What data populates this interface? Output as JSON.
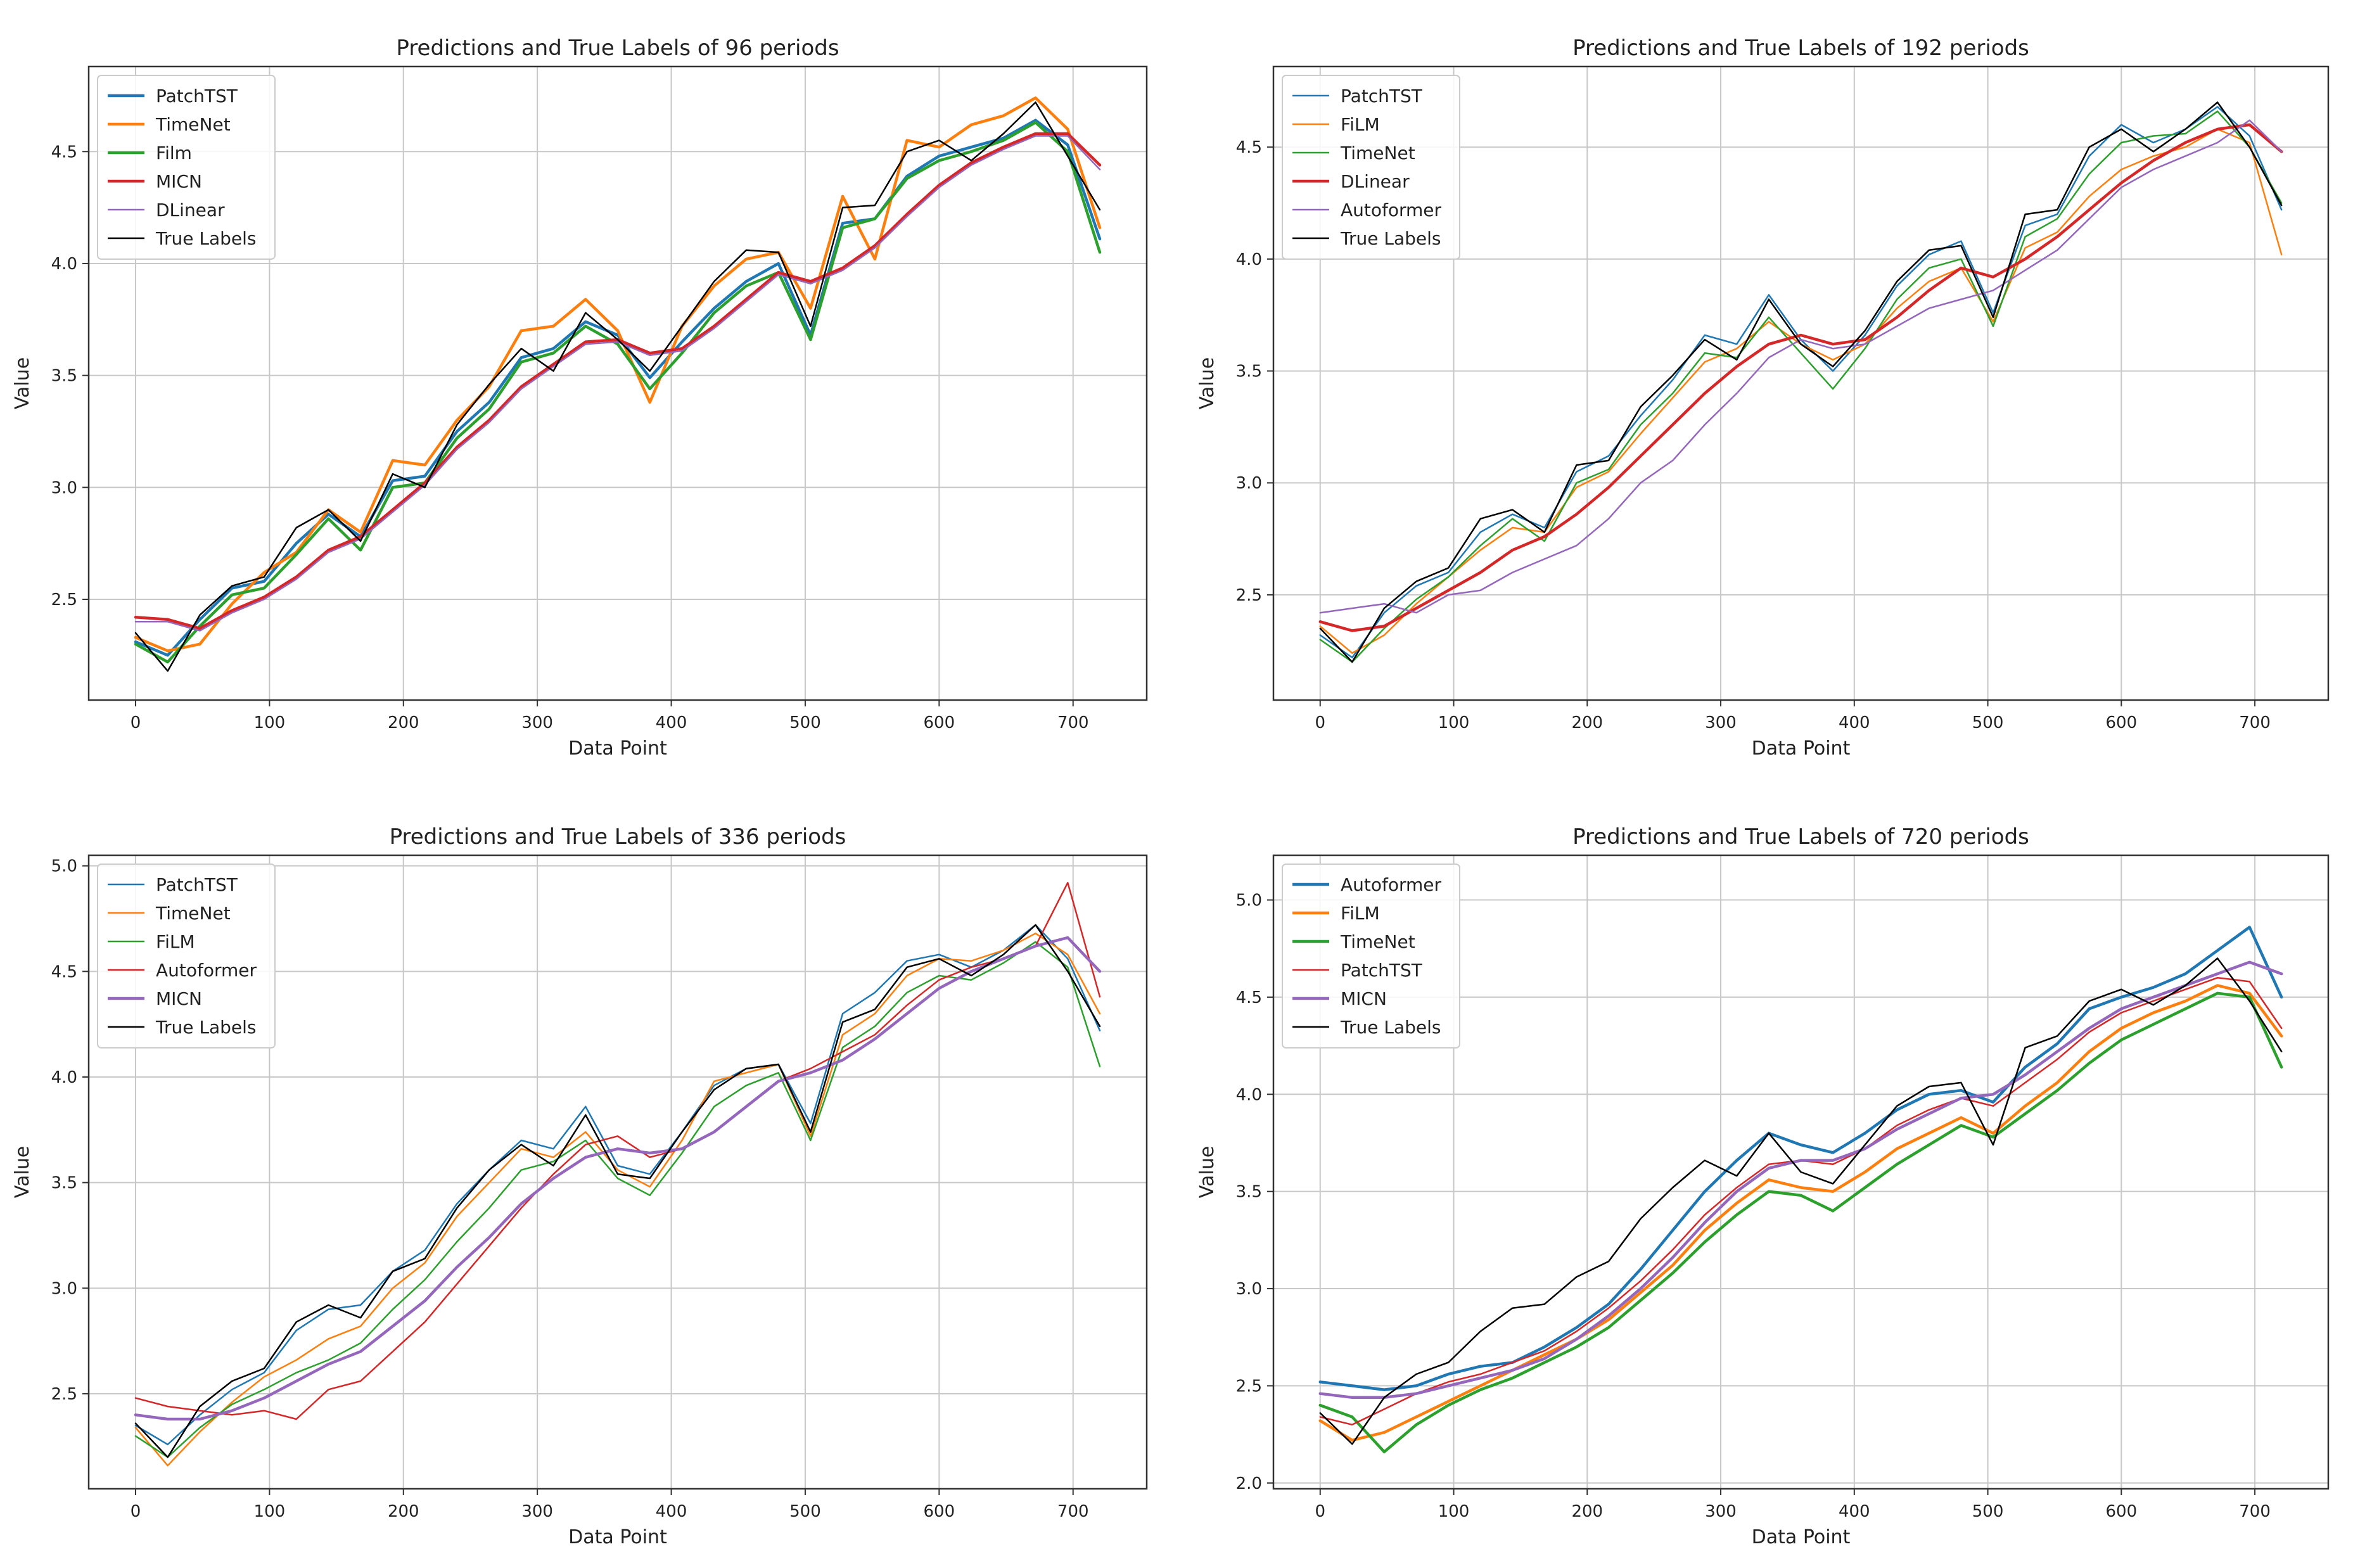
{
  "figure_title": "",
  "colors": {
    "blue": "#1f77b4",
    "orange": "#ff7f0e",
    "green": "#2ca02c",
    "red": "#d62728",
    "purple": "#9467bd",
    "black": "#000000",
    "grid": "#c8c8c8",
    "frame": "#333333"
  },
  "chart_data": [
    {
      "type": "line",
      "title": "Predictions and True Labels of 96 periods",
      "xlabel": "Data Point",
      "ylabel": "Value",
      "xlim": [
        -35,
        755
      ],
      "ylim": [
        2.05,
        4.88
      ],
      "xticks": [
        0,
        100,
        200,
        300,
        400,
        500,
        600,
        700
      ],
      "yticks": [
        2.5,
        3.0,
        3.5,
        4.0,
        4.5
      ],
      "ytick_labels": [
        "2.5",
        "3.0",
        "3.5",
        "4.0",
        "4.5"
      ],
      "legend_position": "upper-left",
      "series": [
        {
          "name": "PatchTST",
          "color": "#1f77b4",
          "width": 4.5,
          "values": [
            2.31,
            2.25,
            2.41,
            2.55,
            2.58,
            2.75,
            2.88,
            2.78,
            3.03,
            3.05,
            3.25,
            3.38,
            3.58,
            3.62,
            3.74,
            3.68,
            3.49,
            3.65,
            3.8,
            3.92,
            4.0,
            3.68,
            4.18,
            4.2,
            4.39,
            4.48,
            4.52,
            4.56,
            4.64,
            4.53,
            4.11
          ]
        },
        {
          "name": "TimeNet",
          "color": "#ff7f0e",
          "width": 4.5,
          "values": [
            2.33,
            2.27,
            2.3,
            2.48,
            2.62,
            2.71,
            2.9,
            2.8,
            3.12,
            3.1,
            3.3,
            3.45,
            3.7,
            3.72,
            3.84,
            3.7,
            3.38,
            3.72,
            3.9,
            4.02,
            4.05,
            3.8,
            4.3,
            4.02,
            4.55,
            4.52,
            4.62,
            4.66,
            4.74,
            4.6,
            4.16
          ]
        },
        {
          "name": "Film",
          "color": "#2ca02c",
          "width": 4.5,
          "values": [
            2.3,
            2.22,
            2.38,
            2.52,
            2.55,
            2.7,
            2.86,
            2.72,
            3.0,
            3.02,
            3.22,
            3.35,
            3.56,
            3.6,
            3.72,
            3.64,
            3.44,
            3.6,
            3.78,
            3.9,
            3.96,
            3.66,
            4.16,
            4.2,
            4.38,
            4.46,
            4.5,
            4.55,
            4.63,
            4.5,
            4.05
          ]
        },
        {
          "name": "MICN",
          "color": "#d62728",
          "width": 4.5,
          "values": [
            2.42,
            2.41,
            2.37,
            2.45,
            2.51,
            2.6,
            2.72,
            2.78,
            2.9,
            3.02,
            3.18,
            3.3,
            3.45,
            3.55,
            3.65,
            3.66,
            3.6,
            3.62,
            3.72,
            3.84,
            3.96,
            3.92,
            3.98,
            4.08,
            4.22,
            4.35,
            4.45,
            4.52,
            4.58,
            4.58,
            4.44
          ]
        },
        {
          "name": "DLinear",
          "color": "#9467bd",
          "width": 2.5,
          "values": [
            2.4,
            2.4,
            2.36,
            2.44,
            2.5,
            2.59,
            2.71,
            2.77,
            2.89,
            3.01,
            3.17,
            3.29,
            3.44,
            3.54,
            3.64,
            3.65,
            3.59,
            3.61,
            3.71,
            3.83,
            3.95,
            3.91,
            3.97,
            4.07,
            4.21,
            4.34,
            4.44,
            4.51,
            4.57,
            4.57,
            4.42
          ]
        },
        {
          "name": "True Labels",
          "color": "#000000",
          "width": 2.5,
          "values": [
            2.35,
            2.18,
            2.43,
            2.56,
            2.6,
            2.82,
            2.9,
            2.76,
            3.06,
            3.0,
            3.28,
            3.46,
            3.62,
            3.52,
            3.78,
            3.66,
            3.52,
            3.72,
            3.92,
            4.06,
            4.05,
            3.72,
            4.25,
            4.26,
            4.5,
            4.55,
            4.46,
            4.58,
            4.72,
            4.48,
            4.24
          ]
        }
      ]
    },
    {
      "type": "line",
      "title": "Predictions and True Labels of 192 periods",
      "xlabel": "Data Point",
      "ylabel": "Value",
      "xlim": [
        -35,
        755
      ],
      "ylim": [
        2.03,
        4.86
      ],
      "xticks": [
        0,
        100,
        200,
        300,
        400,
        500,
        600,
        700
      ],
      "yticks": [
        2.5,
        3.0,
        3.5,
        4.0,
        4.5
      ],
      "ytick_labels": [
        "2.5",
        "3.0",
        "3.5",
        "4.0",
        "4.5"
      ],
      "legend_position": "upper-left",
      "series": [
        {
          "name": "PatchTST",
          "color": "#1f77b4",
          "width": 2.5,
          "values": [
            2.32,
            2.22,
            2.42,
            2.54,
            2.6,
            2.78,
            2.86,
            2.8,
            3.05,
            3.12,
            3.3,
            3.46,
            3.66,
            3.62,
            3.84,
            3.64,
            3.5,
            3.66,
            3.88,
            4.02,
            4.08,
            3.76,
            4.15,
            4.2,
            4.46,
            4.6,
            4.52,
            4.58,
            4.68,
            4.55,
            4.22
          ]
        },
        {
          "name": "FiLM",
          "color": "#ff7f0e",
          "width": 2.5,
          "values": [
            2.36,
            2.24,
            2.32,
            2.46,
            2.58,
            2.7,
            2.8,
            2.78,
            2.98,
            3.05,
            3.22,
            3.38,
            3.54,
            3.6,
            3.72,
            3.62,
            3.55,
            3.62,
            3.78,
            3.9,
            3.96,
            3.72,
            4.05,
            4.12,
            4.28,
            4.4,
            4.46,
            4.5,
            4.58,
            4.52,
            4.02
          ]
        },
        {
          "name": "TimeNet",
          "color": "#2ca02c",
          "width": 2.5,
          "values": [
            2.3,
            2.2,
            2.35,
            2.48,
            2.58,
            2.72,
            2.84,
            2.74,
            3.0,
            3.06,
            3.26,
            3.4,
            3.58,
            3.56,
            3.74,
            3.58,
            3.42,
            3.6,
            3.82,
            3.96,
            4.0,
            3.7,
            4.1,
            4.18,
            4.38,
            4.52,
            4.55,
            4.56,
            4.66,
            4.5,
            4.25
          ]
        },
        {
          "name": "DLinear",
          "color": "#d62728",
          "width": 4.5,
          "values": [
            2.38,
            2.34,
            2.36,
            2.44,
            2.52,
            2.6,
            2.7,
            2.76,
            2.86,
            2.98,
            3.12,
            3.26,
            3.4,
            3.52,
            3.62,
            3.66,
            3.62,
            3.64,
            3.74,
            3.86,
            3.96,
            3.92,
            4.0,
            4.1,
            4.22,
            4.34,
            4.44,
            4.52,
            4.58,
            4.6,
            4.48
          ]
        },
        {
          "name": "Autoformer",
          "color": "#9467bd",
          "width": 2.5,
          "values": [
            2.42,
            2.44,
            2.46,
            2.42,
            2.5,
            2.52,
            2.6,
            2.66,
            2.72,
            2.84,
            3.0,
            3.1,
            3.26,
            3.4,
            3.56,
            3.64,
            3.6,
            3.62,
            3.7,
            3.78,
            3.82,
            3.86,
            3.95,
            4.04,
            4.18,
            4.32,
            4.4,
            4.46,
            4.52,
            4.62,
            4.48
          ]
        },
        {
          "name": "True Labels",
          "color": "#000000",
          "width": 2.5,
          "values": [
            2.35,
            2.2,
            2.44,
            2.56,
            2.62,
            2.84,
            2.88,
            2.78,
            3.08,
            3.1,
            3.34,
            3.48,
            3.64,
            3.55,
            3.82,
            3.62,
            3.52,
            3.68,
            3.9,
            4.04,
            4.06,
            3.74,
            4.2,
            4.22,
            4.5,
            4.58,
            4.48,
            4.58,
            4.7,
            4.5,
            4.24
          ]
        }
      ]
    },
    {
      "type": "line",
      "title": "Predictions and True Labels of 336 periods",
      "xlabel": "Data Point",
      "ylabel": "Value",
      "xlim": [
        -35,
        755
      ],
      "ylim": [
        2.05,
        5.05
      ],
      "xticks": [
        0,
        100,
        200,
        300,
        400,
        500,
        600,
        700
      ],
      "yticks": [
        2.5,
        3.0,
        3.5,
        4.0,
        4.5,
        5.0
      ],
      "ytick_labels": [
        "2.5",
        "3.0",
        "3.5",
        "4.0",
        "4.5",
        "5.0"
      ],
      "legend_position": "upper-left",
      "series": [
        {
          "name": "PatchTST",
          "color": "#1f77b4",
          "width": 2.5,
          "values": [
            2.35,
            2.26,
            2.4,
            2.52,
            2.6,
            2.8,
            2.9,
            2.92,
            3.08,
            3.18,
            3.4,
            3.56,
            3.7,
            3.66,
            3.86,
            3.58,
            3.54,
            3.74,
            3.96,
            4.04,
            4.06,
            3.78,
            4.3,
            4.4,
            4.55,
            4.58,
            4.52,
            4.6,
            4.72,
            4.56,
            4.22
          ]
        },
        {
          "name": "TimeNet",
          "color": "#ff7f0e",
          "width": 2.5,
          "values": [
            2.34,
            2.16,
            2.32,
            2.46,
            2.58,
            2.66,
            2.76,
            2.82,
            3.0,
            3.12,
            3.34,
            3.5,
            3.66,
            3.62,
            3.74,
            3.56,
            3.48,
            3.7,
            3.98,
            4.02,
            4.06,
            3.72,
            4.2,
            4.3,
            4.48,
            4.56,
            4.55,
            4.6,
            4.68,
            4.58,
            4.3
          ]
        },
        {
          "name": "FiLM",
          "color": "#2ca02c",
          "width": 2.5,
          "values": [
            2.3,
            2.2,
            2.34,
            2.45,
            2.52,
            2.6,
            2.66,
            2.74,
            2.9,
            3.04,
            3.22,
            3.38,
            3.56,
            3.6,
            3.7,
            3.52,
            3.44,
            3.64,
            3.86,
            3.96,
            4.02,
            3.7,
            4.14,
            4.24,
            4.4,
            4.48,
            4.46,
            4.54,
            4.64,
            4.52,
            4.05
          ]
        },
        {
          "name": "Autoformer",
          "color": "#d62728",
          "width": 2.5,
          "values": [
            2.48,
            2.44,
            2.42,
            2.4,
            2.42,
            2.38,
            2.52,
            2.56,
            2.7,
            2.84,
            3.02,
            3.2,
            3.38,
            3.54,
            3.68,
            3.72,
            3.62,
            3.66,
            3.74,
            3.86,
            3.98,
            4.04,
            4.12,
            4.2,
            4.34,
            4.46,
            4.52,
            4.56,
            4.62,
            4.92,
            4.38
          ]
        },
        {
          "name": "MICN",
          "color": "#9467bd",
          "width": 4.5,
          "values": [
            2.4,
            2.38,
            2.38,
            2.42,
            2.48,
            2.56,
            2.64,
            2.7,
            2.82,
            2.94,
            3.1,
            3.24,
            3.4,
            3.52,
            3.62,
            3.66,
            3.64,
            3.66,
            3.74,
            3.86,
            3.98,
            4.02,
            4.08,
            4.18,
            4.3,
            4.42,
            4.5,
            4.56,
            4.62,
            4.66,
            4.5
          ]
        },
        {
          "name": "True Labels",
          "color": "#000000",
          "width": 2.5,
          "values": [
            2.36,
            2.2,
            2.44,
            2.56,
            2.62,
            2.84,
            2.92,
            2.86,
            3.08,
            3.14,
            3.38,
            3.56,
            3.68,
            3.58,
            3.82,
            3.54,
            3.52,
            3.74,
            3.94,
            4.04,
            4.06,
            3.74,
            4.26,
            4.32,
            4.52,
            4.56,
            4.48,
            4.58,
            4.72,
            4.5,
            4.24
          ]
        }
      ]
    },
    {
      "type": "line",
      "title": "Predictions and True Labels of 720 periods",
      "xlabel": "Data Point",
      "ylabel": "Value",
      "xlim": [
        -35,
        755
      ],
      "ylim": [
        1.97,
        5.23
      ],
      "xticks": [
        0,
        100,
        200,
        300,
        400,
        500,
        600,
        700
      ],
      "yticks": [
        2.0,
        2.5,
        3.0,
        3.5,
        4.0,
        4.5,
        5.0
      ],
      "ytick_labels": [
        "2.0",
        "2.5",
        "3.0",
        "3.5",
        "4.0",
        "4.5",
        "5.0"
      ],
      "legend_position": "upper-left",
      "series": [
        {
          "name": "Autoformer",
          "color": "#1f77b4",
          "width": 4.5,
          "values": [
            2.52,
            2.5,
            2.48,
            2.5,
            2.56,
            2.6,
            2.62,
            2.7,
            2.8,
            2.92,
            3.1,
            3.3,
            3.5,
            3.66,
            3.8,
            3.74,
            3.7,
            3.8,
            3.92,
            4.0,
            4.02,
            3.96,
            4.14,
            4.26,
            4.44,
            4.5,
            4.55,
            4.62,
            4.74,
            4.86,
            4.5
          ]
        },
        {
          "name": "FiLM",
          "color": "#ff7f0e",
          "width": 4.5,
          "values": [
            2.32,
            2.22,
            2.26,
            2.34,
            2.42,
            2.5,
            2.58,
            2.66,
            2.74,
            2.84,
            2.98,
            3.12,
            3.3,
            3.44,
            3.56,
            3.52,
            3.5,
            3.6,
            3.72,
            3.8,
            3.88,
            3.8,
            3.94,
            4.06,
            4.22,
            4.34,
            4.42,
            4.48,
            4.56,
            4.52,
            4.3
          ]
        },
        {
          "name": "TimeNet",
          "color": "#2ca02c",
          "width": 4.5,
          "values": [
            2.4,
            2.34,
            2.16,
            2.3,
            2.4,
            2.48,
            2.54,
            2.62,
            2.7,
            2.8,
            2.94,
            3.08,
            3.24,
            3.38,
            3.5,
            3.48,
            3.4,
            3.52,
            3.64,
            3.74,
            3.84,
            3.78,
            3.9,
            4.02,
            4.16,
            4.28,
            4.36,
            4.44,
            4.52,
            4.5,
            4.14
          ]
        },
        {
          "name": "PatchTST",
          "color": "#d62728",
          "width": 2.5,
          "values": [
            2.34,
            2.3,
            2.38,
            2.46,
            2.52,
            2.56,
            2.62,
            2.68,
            2.78,
            2.9,
            3.04,
            3.2,
            3.38,
            3.52,
            3.64,
            3.66,
            3.64,
            3.72,
            3.84,
            3.92,
            3.98,
            3.94,
            4.06,
            4.18,
            4.32,
            4.42,
            4.48,
            4.54,
            4.6,
            4.58,
            4.34
          ]
        },
        {
          "name": "MICN",
          "color": "#9467bd",
          "width": 4.5,
          "values": [
            2.46,
            2.44,
            2.44,
            2.46,
            2.5,
            2.54,
            2.58,
            2.64,
            2.74,
            2.86,
            3.0,
            3.16,
            3.34,
            3.5,
            3.62,
            3.66,
            3.66,
            3.72,
            3.82,
            3.9,
            3.98,
            4.0,
            4.1,
            4.22,
            4.34,
            4.44,
            4.5,
            4.56,
            4.62,
            4.68,
            4.62
          ]
        },
        {
          "name": "True Labels",
          "color": "#000000",
          "width": 2.5,
          "values": [
            2.36,
            2.2,
            2.44,
            2.56,
            2.62,
            2.78,
            2.9,
            2.92,
            3.06,
            3.14,
            3.36,
            3.52,
            3.66,
            3.58,
            3.8,
            3.6,
            3.54,
            3.74,
            3.94,
            4.04,
            4.06,
            3.74,
            4.24,
            4.3,
            4.48,
            4.54,
            4.46,
            4.56,
            4.7,
            4.48,
            4.22
          ]
        }
      ]
    }
  ]
}
